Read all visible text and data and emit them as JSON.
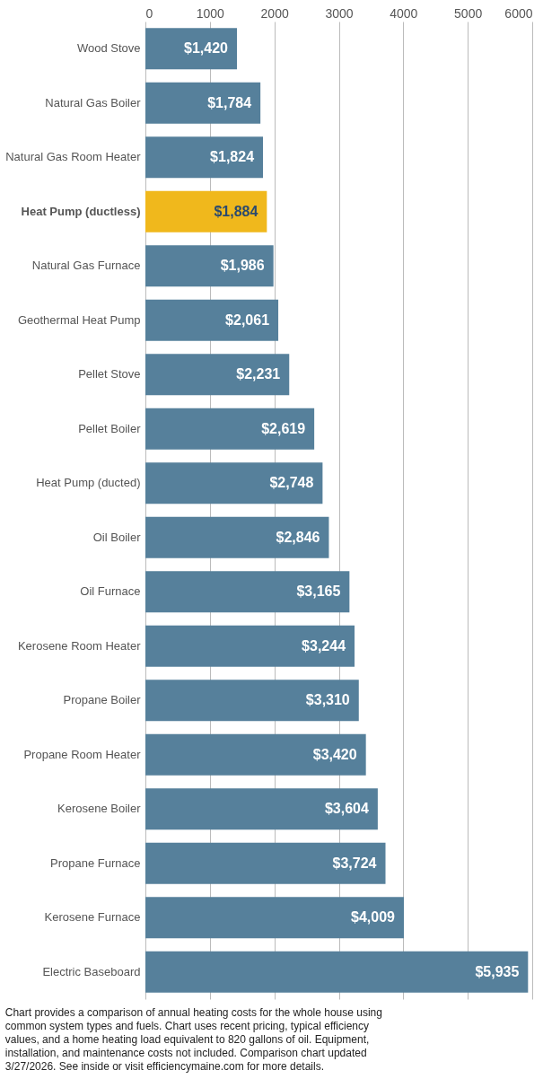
{
  "chart_data": {
    "type": "bar",
    "orientation": "horizontal",
    "categories": [
      "Wood Stove",
      "Natural Gas Boiler",
      "Natural Gas Room Heater",
      "Heat Pump (ductless)",
      "Natural Gas Furnace",
      "Geothermal Heat Pump",
      "Pellet Stove",
      "Pellet Boiler",
      "Heat Pump (ducted)",
      "Oil Boiler",
      "Oil Furnace",
      "Kerosene Room Heater",
      "Propane Boiler",
      "Propane Room Heater",
      "Kerosene Boiler",
      "Propane Furnace",
      "Kerosene Furnace",
      "Electric Baseboard"
    ],
    "values": [
      1420,
      1784,
      1824,
      1884,
      1986,
      2061,
      2231,
      2619,
      2748,
      2846,
      3165,
      3244,
      3310,
      3420,
      3604,
      3724,
      4009,
      5935
    ],
    "colors": [
      "#56809b",
      "#56809b",
      "#56809b",
      "#f0b81c",
      "#56809b",
      "#56809b",
      "#56809b",
      "#56809b",
      "#56809b",
      "#56809b",
      "#56809b",
      "#56809b",
      "#56809b",
      "#56809b",
      "#56809b",
      "#56809b",
      "#56809b",
      "#56809b"
    ],
    "value_labels": [
      "$1,420",
      "$1,784",
      "$1,824",
      "$1,884",
      "$1,986",
      "$2,061",
      "$2,231",
      "$2,619",
      "$2,748",
      "$2,846",
      "$3,165",
      "$3,244",
      "$3,310",
      "$3,420",
      "$3,604",
      "$3,724",
      "$4,009",
      "$5,935"
    ],
    "xlim": [
      0,
      6000
    ],
    "xticks": [
      0,
      1000,
      2000,
      3000,
      4000,
      5000,
      6000
    ],
    "grid": "x",
    "annotations": [
      "Chart provides a comparison of annual heating costs for the whole house using common system types and fuels. Chart uses recent pricing, typical efficiency values, and a home heating load equivalent to 820 gallons of oil. Equipment, installation, and maintenance costs not included. Comparison chart updated 3/27/2026. See inside or visit efficiencymaine.com for more details."
    ]
  }
}
